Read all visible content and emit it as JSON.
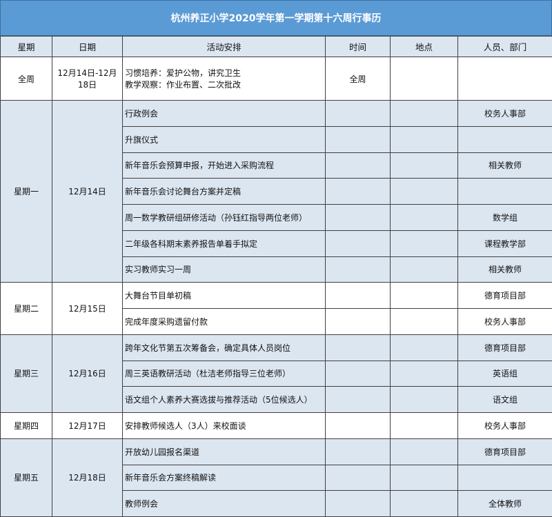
{
  "title": "杭州养正小学2020学年第一学期第十六周行事历",
  "headers": [
    "星期",
    "日期",
    "活动安排",
    "时间",
    "地点",
    "人员、部门"
  ],
  "colors": {
    "title_bar": "#5b9bd5",
    "shaded_row": "#dce6f1"
  },
  "week_row": {
    "day": "全周",
    "date": "12月14日-12月18日",
    "activities": [
      "习惯培养：爱护公物，讲究卫生",
      "教学观察：作业布置、二次批改"
    ],
    "time": "全周",
    "place": "",
    "people": ""
  },
  "days": [
    {
      "day": "星期一",
      "date": "12月14日",
      "shaded": true,
      "items": [
        {
          "activity": "行政例会",
          "time": "",
          "place": "",
          "people": "校务人事部"
        },
        {
          "activity": "升旗仪式",
          "time": "",
          "place": "",
          "people": ""
        },
        {
          "activity": "新年音乐会预算申报，开始进入采购流程",
          "time": "",
          "place": "",
          "people": "相关教师"
        },
        {
          "activity": "新年音乐会讨论舞台方案并定稿",
          "time": "",
          "place": "",
          "people": ""
        },
        {
          "activity": "周一数学教研组研修活动（孙钰红指导两位老师）",
          "time": "",
          "place": "",
          "people": "数学组"
        },
        {
          "activity": "二年级各科期末素养报告单着手拟定",
          "time": "",
          "place": "",
          "people": "课程教学部"
        },
        {
          "activity": "实习教师实习一周",
          "time": "",
          "place": "",
          "people": "相关教师"
        }
      ]
    },
    {
      "day": "星期二",
      "date": "12月15日",
      "shaded": false,
      "items": [
        {
          "activity": "大舞台节目单初稿",
          "time": "",
          "place": "",
          "people": "德育项目部"
        },
        {
          "activity": "完成年度采购遗留付款",
          "time": "",
          "place": "",
          "people": "校务人事部"
        }
      ]
    },
    {
      "day": "星期三",
      "date": "12月16日",
      "shaded": true,
      "items": [
        {
          "activity": "跨年文化节第五次筹备会，确定具体人员岗位",
          "time": "",
          "place": "",
          "people": "德育项目部"
        },
        {
          "activity": "周三英语教研活动（杜洁老师指导三位老师）",
          "time": "",
          "place": "",
          "people": "英语组"
        },
        {
          "activity": "语文组个人素养大赛选拔与推荐活动（5位候选人）",
          "time": "",
          "place": "",
          "people": "语文组"
        }
      ]
    },
    {
      "day": "星期四",
      "date": "12月17日",
      "shaded": false,
      "items": [
        {
          "activity": "安排教师候选人（3人）来校面谈",
          "time": "",
          "place": "",
          "people": "校务人事部"
        }
      ]
    },
    {
      "day": "星期五",
      "date": "12月18日",
      "shaded": true,
      "items": [
        {
          "activity": "开放幼儿园报名渠道",
          "time": "",
          "place": "",
          "people": "德育项目部"
        },
        {
          "activity": "新年音乐会方案终稿解读",
          "time": "",
          "place": "",
          "people": ""
        },
        {
          "activity": "教师例会",
          "time": "",
          "place": "",
          "people": "全体教师"
        }
      ]
    }
  ]
}
